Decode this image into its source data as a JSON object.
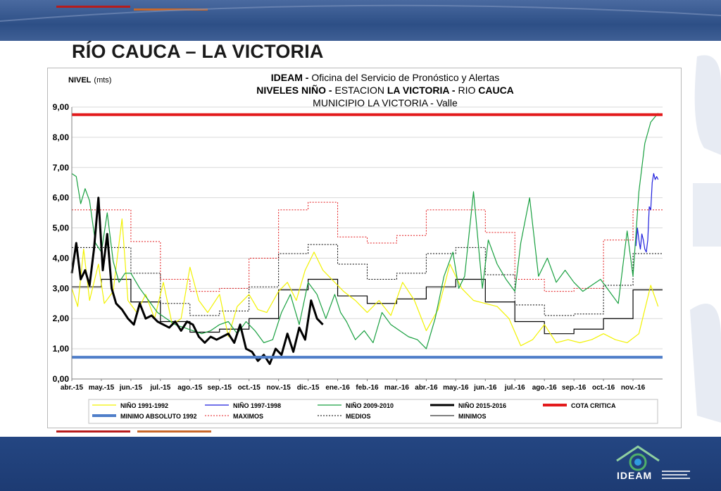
{
  "slide": {
    "title": "RÍO CAUCA – LA VICTORIA",
    "logo_text": "IDEAM"
  },
  "colors": {
    "header": "#2d4f86",
    "footer": "#1d3b73",
    "accent_red": "#b71c1c",
    "accent_orange": "#c9682a"
  },
  "chart_data": {
    "type": "line",
    "title_lines": [
      {
        "bold": "IDEAM - ",
        "normal": "Oficina del Servicio de Pronóstico y Alertas"
      },
      {
        "bold": "NIVELES NIÑO - ",
        "normal": "ESTACION ",
        "bold2": "LA VICTORIA - ",
        "normal2": "RIO ",
        "bold3": "CAUCA"
      },
      {
        "bold": "",
        "normal": "MUNICIPIO LA VICTORIA - Valle"
      }
    ],
    "ylabel_bold": "NIVEL",
    "ylabel_unit": "(mts)",
    "ylim": [
      0,
      9
    ],
    "yticks": [
      "0,00",
      "1,00",
      "2,00",
      "3,00",
      "4,00",
      "5,00",
      "6,00",
      "7,00",
      "8,00",
      "9,00"
    ],
    "xticks": [
      "abr.-15",
      "may.-15",
      "jun.-15",
      "jul.-15",
      "ago.-15",
      "sep.-15",
      "oct.-15",
      "nov.-15",
      "dic.-15",
      "ene.-16",
      "feb.-16",
      "mar.-16",
      "abr.-16",
      "may.-16",
      "jun.-16",
      "jul.-16",
      "ago.-16",
      "sep.-16",
      "oct.-16",
      "nov.-16"
    ],
    "x_range_months": [
      0,
      20
    ],
    "grid": true,
    "legend": [
      {
        "label": "NIÑO 1991-1992",
        "color": "#f2f200",
        "style": "solid",
        "width": 1.2
      },
      {
        "label": "NIÑO 1997-1998",
        "color": "#1f1fdd",
        "style": "solid",
        "width": 1.2
      },
      {
        "label": "NIÑO 2009-2010",
        "color": "#19a040",
        "style": "solid",
        "width": 1.2
      },
      {
        "label": "NIÑO 2015-2016",
        "color": "#000000",
        "style": "solid",
        "width": 3
      },
      {
        "label": "COTA CRITICA",
        "color": "#e31a1c",
        "style": "solid",
        "width": 4
      },
      {
        "label": "MINIMO ABSOLUTO 1992",
        "color": "#4f7ec9",
        "style": "solid",
        "width": 4
      },
      {
        "label": "MAXIMOS",
        "color": "#e31a1c",
        "style": "dotted",
        "width": 1
      },
      {
        "label": "MEDIOS",
        "color": "#000000",
        "style": "dotted",
        "width": 1
      },
      {
        "label": "MINIMOS",
        "color": "#000000",
        "style": "solid",
        "width": 1
      }
    ],
    "constants": {
      "cota_critica": 8.75,
      "minimo_absoluto": 0.72
    },
    "monthly_steps": {
      "maximos": [
        5.6,
        5.6,
        4.55,
        3.3,
        2.9,
        3.0,
        4.0,
        5.6,
        5.85,
        4.7,
        4.5,
        4.75,
        5.6,
        5.6,
        4.85,
        3.3,
        2.9,
        3.0,
        4.6,
        5.6
      ],
      "medios": [
        4.35,
        4.35,
        3.5,
        2.5,
        2.1,
        2.25,
        3.05,
        4.15,
        4.45,
        3.8,
        3.3,
        3.5,
        4.15,
        4.35,
        3.45,
        2.45,
        2.1,
        2.15,
        3.1,
        4.15
      ],
      "minimos": [
        3.05,
        3.3,
        2.55,
        1.9,
        1.55,
        1.65,
        2.0,
        2.95,
        3.3,
        2.75,
        2.5,
        2.65,
        3.05,
        3.3,
        2.55,
        1.9,
        1.5,
        1.65,
        2.0,
        2.95
      ]
    },
    "series": [
      {
        "name": "NIÑO 1991-1992",
        "color": "#f2f200",
        "width": 1.2,
        "x": [
          0,
          0.2,
          0.4,
          0.6,
          0.9,
          1.1,
          1.4,
          1.7,
          1.9,
          2.2,
          2.5,
          2.8,
          3.1,
          3.4,
          3.7,
          4.0,
          4.3,
          4.6,
          5.0,
          5.3,
          5.6,
          6.0,
          6.3,
          6.6,
          7.0,
          7.3,
          7.6,
          7.9,
          8.2,
          8.5,
          8.8,
          9.2,
          9.6,
          10.0,
          10.4,
          10.8,
          11.2,
          11.6,
          12.0,
          12.4,
          12.8,
          13.2,
          13.6,
          14.0,
          14.4,
          14.8,
          15.2,
          15.6,
          16.0,
          16.4,
          16.8,
          17.2,
          17.6,
          18.0,
          18.4,
          18.8,
          19.2,
          19.6,
          19.85
        ],
        "y": [
          3.0,
          2.4,
          4.3,
          2.6,
          3.8,
          2.5,
          2.9,
          5.3,
          2.6,
          2.2,
          2.8,
          2.0,
          3.2,
          1.8,
          2.0,
          3.7,
          2.6,
          2.2,
          2.8,
          1.4,
          2.4,
          2.8,
          2.3,
          2.2,
          2.9,
          3.2,
          2.6,
          3.6,
          4.2,
          3.6,
          3.3,
          2.9,
          2.6,
          2.2,
          2.6,
          2.1,
          3.2,
          2.6,
          1.6,
          2.3,
          3.8,
          3.0,
          2.6,
          2.5,
          2.4,
          2.0,
          1.1,
          1.3,
          1.8,
          1.2,
          1.3,
          1.2,
          1.3,
          1.5,
          1.3,
          1.2,
          1.5,
          3.1,
          2.4
        ]
      },
      {
        "name": "NIÑO 1997-1998",
        "color": "#1f1fdd",
        "width": 1.2,
        "x": [
          19.1,
          19.15,
          19.2,
          19.25,
          19.3,
          19.35,
          19.4,
          19.45,
          19.5,
          19.55,
          19.6,
          19.65,
          19.7,
          19.75,
          19.8,
          19.85
        ],
        "y": [
          4.4,
          5.0,
          4.6,
          4.3,
          4.8,
          4.6,
          4.3,
          4.2,
          4.6,
          5.7,
          5.6,
          6.5,
          6.8,
          6.6,
          6.7,
          6.6
        ]
      },
      {
        "name": "NIÑO 2009-2010",
        "color": "#19a040",
        "width": 1.2,
        "x": [
          0,
          0.15,
          0.3,
          0.45,
          0.6,
          0.8,
          1.0,
          1.2,
          1.4,
          1.6,
          1.8,
          2.0,
          2.3,
          2.6,
          2.9,
          3.2,
          3.5,
          3.8,
          4.1,
          4.4,
          4.7,
          5.0,
          5.3,
          5.6,
          5.9,
          6.2,
          6.5,
          6.8,
          7.1,
          7.4,
          7.7,
          8.0,
          8.3,
          8.6,
          8.9,
          9.1,
          9.3,
          9.6,
          9.9,
          10.2,
          10.5,
          10.8,
          11.1,
          11.4,
          11.7,
          12.0,
          12.3,
          12.6,
          12.9,
          13.1,
          13.3,
          13.6,
          13.9,
          14.1,
          14.4,
          14.7,
          15.0,
          15.2,
          15.5,
          15.8,
          16.1,
          16.4,
          16.7,
          17.0,
          17.3,
          17.6,
          17.9,
          18.2,
          18.5,
          18.8,
          19.0,
          19.2,
          19.4,
          19.6,
          19.85
        ],
        "y": [
          6.8,
          6.7,
          5.8,
          6.3,
          5.9,
          4.5,
          4.2,
          5.5,
          3.9,
          3.2,
          3.5,
          3.5,
          3.0,
          2.6,
          2.2,
          2.0,
          1.8,
          1.7,
          1.6,
          1.5,
          1.6,
          1.8,
          1.9,
          1.5,
          1.9,
          1.6,
          1.2,
          1.3,
          2.2,
          2.8,
          1.8,
          3.2,
          2.8,
          2.0,
          2.8,
          2.2,
          1.9,
          1.3,
          1.6,
          1.2,
          2.2,
          1.8,
          1.6,
          1.4,
          1.3,
          1.0,
          2.0,
          3.4,
          4.2,
          3.0,
          3.4,
          6.2,
          3.0,
          4.6,
          3.8,
          3.3,
          2.9,
          4.5,
          6.0,
          3.4,
          4.0,
          3.2,
          3.6,
          3.2,
          2.9,
          3.1,
          3.3,
          2.9,
          2.5,
          4.9,
          3.4,
          6.2,
          7.8,
          8.5,
          8.8
        ]
      },
      {
        "name": "NIÑO 2015-2016",
        "color": "#000000",
        "width": 3,
        "x": [
          0,
          0.15,
          0.3,
          0.45,
          0.6,
          0.75,
          0.9,
          1.05,
          1.2,
          1.35,
          1.5,
          1.7,
          1.9,
          2.1,
          2.3,
          2.5,
          2.7,
          2.9,
          3.1,
          3.3,
          3.5,
          3.7,
          3.9,
          4.1,
          4.3,
          4.5,
          4.7,
          4.9,
          5.1,
          5.3,
          5.5,
          5.7,
          5.9,
          6.1,
          6.3,
          6.5,
          6.7,
          6.9,
          7.1,
          7.3,
          7.5,
          7.7,
          7.9,
          8.1,
          8.3,
          8.5
        ],
        "y": [
          3.5,
          4.5,
          3.3,
          3.6,
          3.1,
          4.3,
          6.0,
          3.6,
          4.8,
          3.0,
          2.5,
          2.3,
          2.0,
          1.8,
          2.5,
          2.0,
          2.1,
          1.9,
          1.8,
          1.7,
          1.9,
          1.6,
          1.9,
          1.8,
          1.4,
          1.2,
          1.4,
          1.3,
          1.4,
          1.5,
          1.2,
          1.8,
          1.0,
          0.9,
          0.6,
          0.8,
          0.5,
          1.0,
          0.8,
          1.5,
          0.9,
          1.7,
          1.3,
          2.6,
          2.0,
          1.8
        ]
      }
    ]
  }
}
